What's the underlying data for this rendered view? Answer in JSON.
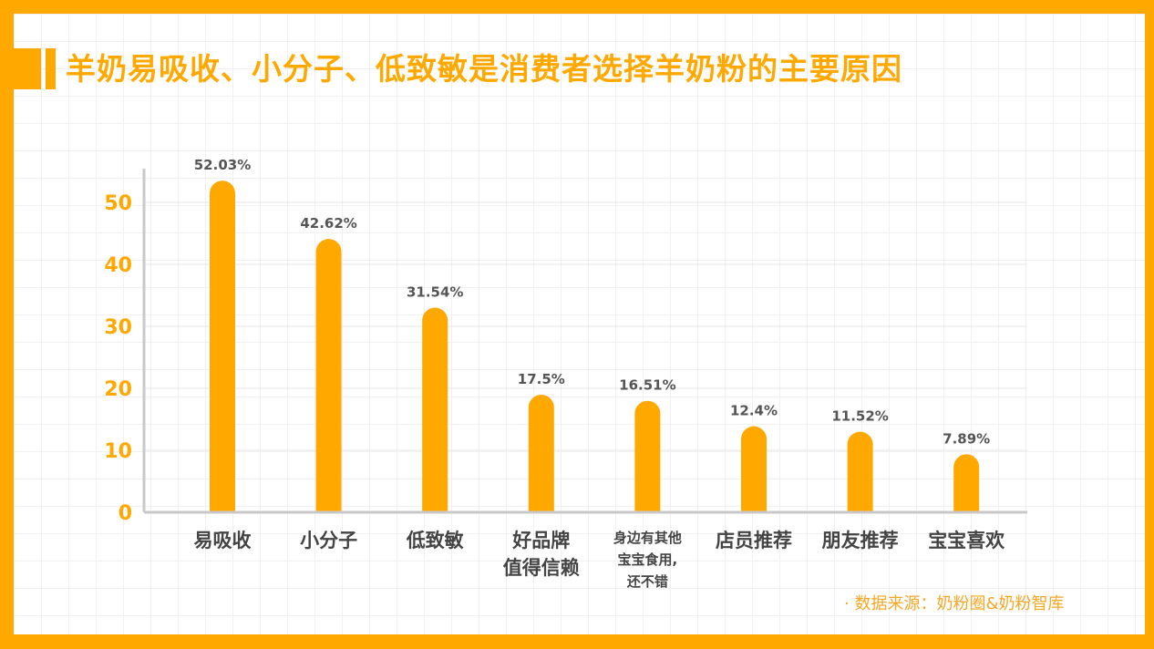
{
  "title": "羊奶易吸收、小分子、低致敏是消费者选择羊奶粉的主要原因",
  "source": "· 数据来源：奶粉圈&奶粉智库",
  "colors": {
    "bar": "#FFA800",
    "frame": "#FFA800",
    "tick": "#FFA800",
    "label": "#444444",
    "axis": "#C8C8C8"
  },
  "chart_data": {
    "type": "bar",
    "title": "羊奶易吸收、小分子、低致敏是消费者选择羊奶粉的主要原因",
    "categories": [
      "易吸收",
      "小分子",
      "低致敏",
      "好品牌\n值得信赖",
      "身边有其他\n宝宝食用,\n还不错",
      "店员推荐",
      "朋友推荐",
      "宝宝喜欢"
    ],
    "values": [
      52.03,
      42.62,
      31.54,
      17.5,
      16.51,
      12.4,
      11.52,
      7.89
    ],
    "data_labels": [
      "52.03%",
      "42.62%",
      "31.54%",
      "17.5%",
      "16.51%",
      "12.4%",
      "11.52%",
      "7.89%"
    ],
    "yticks": [
      "0",
      "10",
      "20",
      "30",
      "40",
      "50"
    ],
    "ylim": [
      0,
      55
    ],
    "xlabel": "",
    "ylabel": "",
    "grid": true
  }
}
